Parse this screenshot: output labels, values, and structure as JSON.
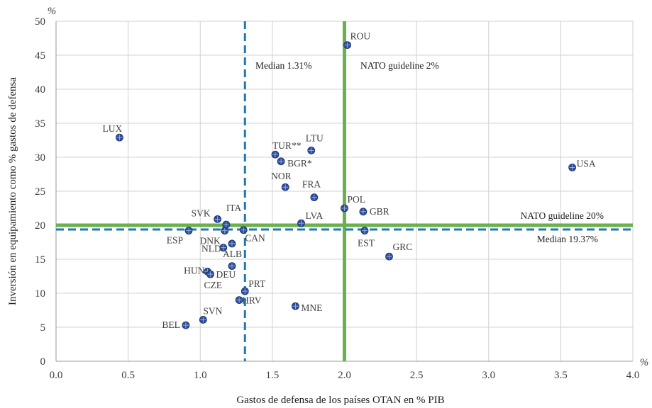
{
  "chart_data": {
    "type": "scatter",
    "xlabel": "Gastos de defensa de los países OTAN en % PIB",
    "ylabel": "Inversión en equipamiento como % gastos de defensa",
    "x_unit": "%",
    "y_unit": "%",
    "xlim": [
      0,
      4
    ],
    "ylim": [
      0,
      50
    ],
    "x_ticks": [
      "0.0",
      "0.5",
      "1.0",
      "1.5",
      "2.0",
      "2.5",
      "3.0",
      "3.5",
      "4.0"
    ],
    "y_ticks": [
      "0",
      "5",
      "10",
      "15",
      "20",
      "25",
      "30",
      "35",
      "40",
      "45",
      "50"
    ],
    "grid": true,
    "point_color": "#2e4f9e",
    "points": [
      {
        "label": "LUX",
        "x": 0.44,
        "y": 32.9
      },
      {
        "label": "BEL",
        "x": 0.9,
        "y": 5.3
      },
      {
        "label": "SVN",
        "x": 1.02,
        "y": 6.1
      },
      {
        "label": "ESP",
        "x": 0.92,
        "y": 19.2
      },
      {
        "label": "HUN",
        "x": 1.05,
        "y": 13.2
      },
      {
        "label": "CZE",
        "x": 1.07,
        "y": 12.8
      },
      {
        "label": "DEU",
        "x": 1.07,
        "y": 12.8
      },
      {
        "label": "SVK",
        "x": 1.12,
        "y": 20.9
      },
      {
        "label": "NLD",
        "x": 1.16,
        "y": 16.7
      },
      {
        "label": "DNK",
        "x": 1.17,
        "y": 19.2
      },
      {
        "label": "ITA",
        "x": 1.18,
        "y": 20.1
      },
      {
        "label": "ALB",
        "x": 1.22,
        "y": 17.3
      },
      {
        "label": "",
        "x": 1.22,
        "y": 14.0
      },
      {
        "label": "HRV",
        "x": 1.27,
        "y": 9.0
      },
      {
        "label": "CAN",
        "x": 1.3,
        "y": 19.3
      },
      {
        "label": "PRT",
        "x": 1.31,
        "y": 10.3
      },
      {
        "label": "TUR**",
        "x": 1.52,
        "y": 30.4
      },
      {
        "label": "BGR*",
        "x": 1.56,
        "y": 29.4
      },
      {
        "label": "NOR",
        "x": 1.59,
        "y": 25.6
      },
      {
        "label": "MNE",
        "x": 1.66,
        "y": 8.1
      },
      {
        "label": "LVA",
        "x": 1.7,
        "y": 20.3
      },
      {
        "label": "LTU",
        "x": 1.77,
        "y": 31.0
      },
      {
        "label": "FRA",
        "x": 1.79,
        "y": 24.1
      },
      {
        "label": "POL",
        "x": 2.0,
        "y": 22.5
      },
      {
        "label": "ROU",
        "x": 2.02,
        "y": 46.5
      },
      {
        "label": "GBR",
        "x": 2.13,
        "y": 22.0
      },
      {
        "label": "EST",
        "x": 2.14,
        "y": 19.2
      },
      {
        "label": "GRC",
        "x": 2.31,
        "y": 15.4
      },
      {
        "label": "USA",
        "x": 3.58,
        "y": 28.5
      }
    ],
    "reference_lines": [
      {
        "axis": "x",
        "value": 1.31,
        "style": "dashed",
        "color": "#1f77b4",
        "label": "Median 1.31%"
      },
      {
        "axis": "x",
        "value": 2.0,
        "style": "solid",
        "color": "#6ab04c",
        "label": "NATO guideline 2%"
      },
      {
        "axis": "y",
        "value": 20,
        "style": "solid",
        "color": "#6ab04c",
        "label": "NATO guideline 20%"
      },
      {
        "axis": "y",
        "value": 19.37,
        "style": "dashed",
        "color": "#1f77b4",
        "label": "Median  19.37%"
      }
    ]
  }
}
